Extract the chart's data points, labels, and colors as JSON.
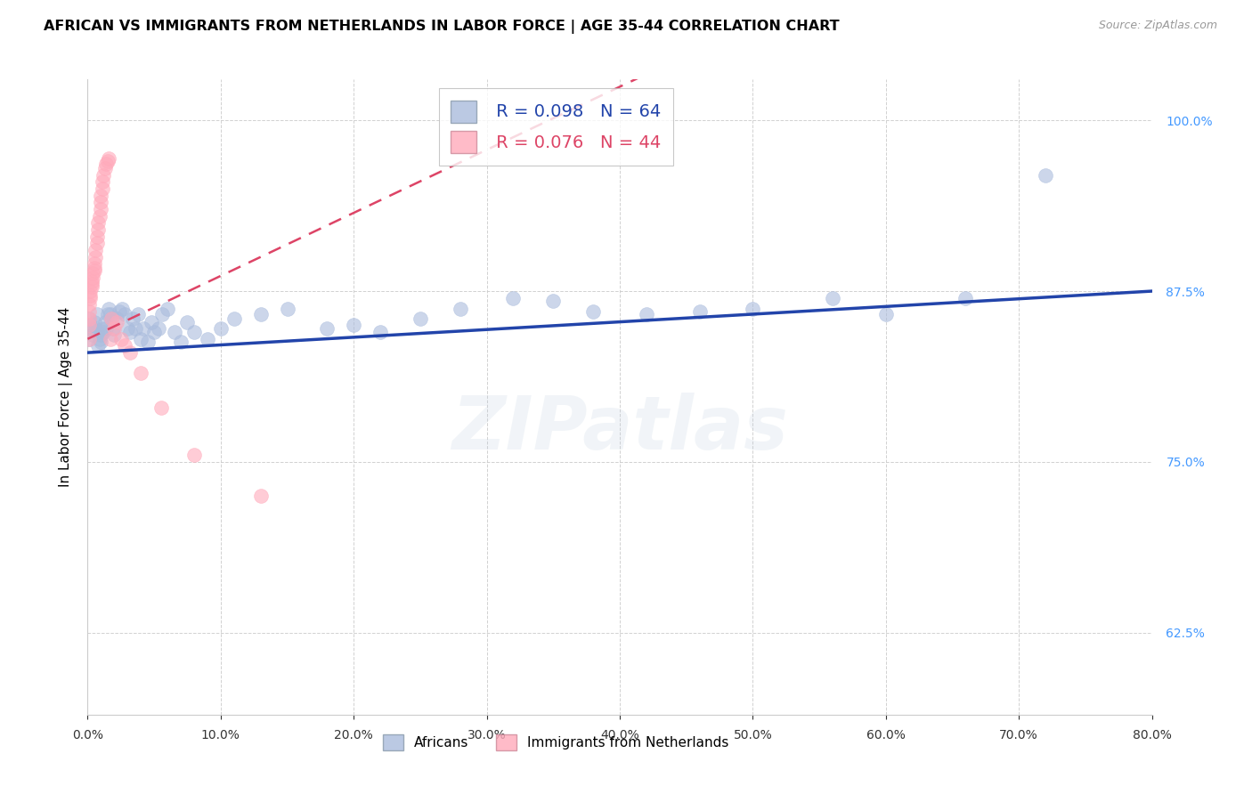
{
  "title": "AFRICAN VS IMMIGRANTS FROM NETHERLANDS IN LABOR FORCE | AGE 35-44 CORRELATION CHART",
  "source": "Source: ZipAtlas.com",
  "ylabel_label": "In Labor Force | Age 35-44",
  "legend_blue_label": "Africans",
  "legend_pink_label": "Immigrants from Netherlands",
  "R_blue": 0.098,
  "N_blue": 64,
  "R_pink": 0.076,
  "N_pink": 44,
  "blue_dot_color": "#aabcdd",
  "pink_dot_color": "#ffaabb",
  "trendline_blue_color": "#2244aa",
  "trendline_pink_color": "#dd4466",
  "watermark": "ZIPatlas",
  "xmin": 0.0,
  "xmax": 0.8,
  "ymin": 0.565,
  "ymax": 1.03,
  "yticks": [
    0.625,
    0.75,
    0.875,
    1.0
  ],
  "xticks": [
    0.0,
    0.1,
    0.2,
    0.3,
    0.4,
    0.5,
    0.6,
    0.7,
    0.8
  ],
  "blue_scatter_x": [
    0.001,
    0.001,
    0.002,
    0.003,
    0.004,
    0.005,
    0.006,
    0.007,
    0.007,
    0.008,
    0.009,
    0.01,
    0.01,
    0.011,
    0.012,
    0.013,
    0.014,
    0.015,
    0.016,
    0.017,
    0.018,
    0.019,
    0.02,
    0.022,
    0.024,
    0.026,
    0.028,
    0.03,
    0.032,
    0.034,
    0.036,
    0.038,
    0.04,
    0.042,
    0.045,
    0.048,
    0.05,
    0.053,
    0.056,
    0.06,
    0.065,
    0.07,
    0.075,
    0.08,
    0.09,
    0.1,
    0.11,
    0.13,
    0.15,
    0.18,
    0.2,
    0.22,
    0.25,
    0.28,
    0.32,
    0.35,
    0.38,
    0.42,
    0.46,
    0.5,
    0.56,
    0.6,
    0.66,
    0.72
  ],
  "blue_scatter_y": [
    0.84,
    0.855,
    0.85,
    0.848,
    0.843,
    0.852,
    0.848,
    0.845,
    0.858,
    0.835,
    0.84,
    0.838,
    0.843,
    0.848,
    0.845,
    0.852,
    0.848,
    0.858,
    0.862,
    0.858,
    0.855,
    0.848,
    0.843,
    0.855,
    0.86,
    0.862,
    0.858,
    0.848,
    0.845,
    0.855,
    0.848,
    0.858,
    0.84,
    0.848,
    0.838,
    0.852,
    0.845,
    0.848,
    0.858,
    0.862,
    0.845,
    0.838,
    0.852,
    0.845,
    0.84,
    0.848,
    0.855,
    0.858,
    0.862,
    0.848,
    0.85,
    0.845,
    0.855,
    0.862,
    0.87,
    0.868,
    0.86,
    0.858,
    0.86,
    0.862,
    0.87,
    0.858,
    0.87,
    0.96
  ],
  "pink_scatter_x": [
    0.001,
    0.001,
    0.001,
    0.001,
    0.001,
    0.002,
    0.002,
    0.002,
    0.003,
    0.003,
    0.003,
    0.004,
    0.004,
    0.005,
    0.005,
    0.005,
    0.006,
    0.006,
    0.007,
    0.007,
    0.008,
    0.008,
    0.009,
    0.01,
    0.01,
    0.01,
    0.011,
    0.011,
    0.012,
    0.013,
    0.014,
    0.015,
    0.016,
    0.017,
    0.018,
    0.02,
    0.022,
    0.025,
    0.028,
    0.032,
    0.04,
    0.055,
    0.08,
    0.13
  ],
  "pink_scatter_y": [
    0.84,
    0.85,
    0.855,
    0.86,
    0.865,
    0.87,
    0.872,
    0.875,
    0.878,
    0.88,
    0.882,
    0.885,
    0.888,
    0.89,
    0.892,
    0.895,
    0.9,
    0.905,
    0.91,
    0.915,
    0.92,
    0.925,
    0.93,
    0.935,
    0.94,
    0.945,
    0.95,
    0.955,
    0.96,
    0.965,
    0.968,
    0.97,
    0.972,
    0.84,
    0.855,
    0.848,
    0.852,
    0.84,
    0.835,
    0.83,
    0.815,
    0.79,
    0.755,
    0.725
  ]
}
